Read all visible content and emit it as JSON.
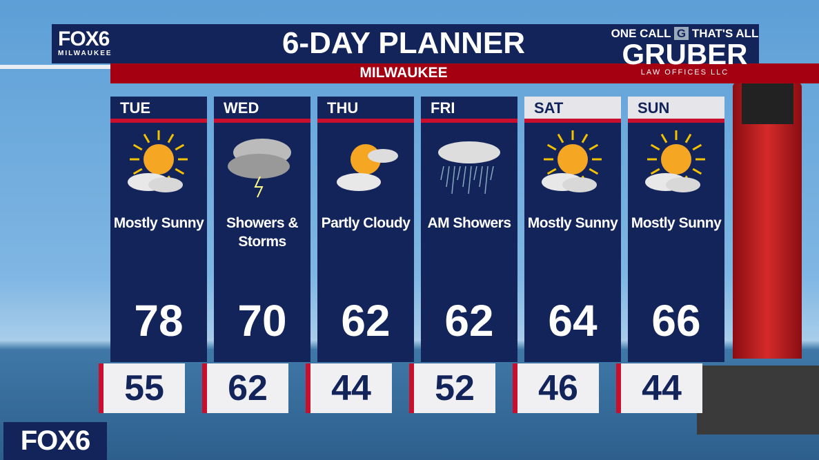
{
  "header": {
    "station_logo": "FOX6",
    "station_sub": "MILWAUKEE",
    "title": "6-DAY PLANNER",
    "city": "MILWAUKEE"
  },
  "sponsor": {
    "tagline_left": "ONE CALL",
    "tagline_right": "THAT'S ALL",
    "name": "GRUBER",
    "sub": "LAW OFFICES LLC"
  },
  "days": [
    {
      "day": "TUE",
      "condition": "Mostly Sunny",
      "icon": "sun-cloud-icon",
      "high": "78",
      "low": "55"
    },
    {
      "day": "WED",
      "condition": "Showers & Storms",
      "icon": "thunderstorm-icon",
      "high": "70",
      "low": "62"
    },
    {
      "day": "THU",
      "condition": "Partly Cloudy",
      "icon": "partly-cloudy-icon",
      "high": "62",
      "low": "44"
    },
    {
      "day": "FRI",
      "condition": "AM Showers",
      "icon": "rain-icon",
      "high": "62",
      "low": "52"
    },
    {
      "day": "SAT",
      "condition": "Mostly Sunny",
      "icon": "sun-cloud-icon",
      "high": "64",
      "low": "46"
    },
    {
      "day": "SUN",
      "condition": "Mostly Sunny",
      "icon": "sun-cloud-icon",
      "high": "66",
      "low": "44"
    }
  ],
  "bug": "FOX6",
  "colors": {
    "navy": "#13245a",
    "red": "#c8102e",
    "sun": "#f5a623"
  }
}
